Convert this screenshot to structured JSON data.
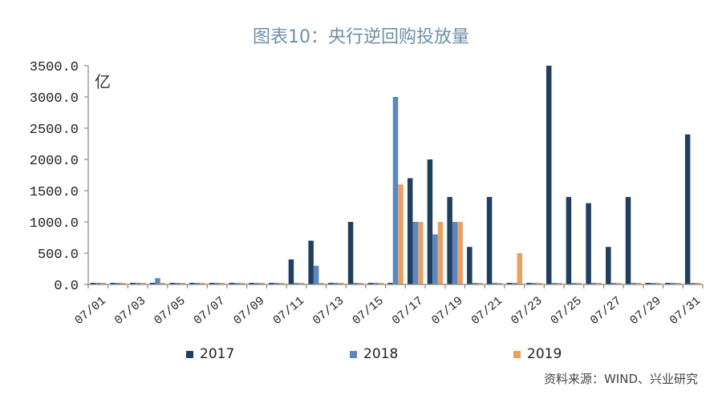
{
  "chart_data": {
    "type": "bar",
    "title": "图表10：央行逆回购投放量",
    "ylabel": "亿",
    "ylim": [
      0,
      3500
    ],
    "yticks": [
      "0.0",
      "500.0",
      "1000.0",
      "1500.0",
      "2000.0",
      "2500.0",
      "3000.0",
      "3500.0"
    ],
    "categories": [
      "07/01",
      "07/02",
      "07/03",
      "07/04",
      "07/05",
      "07/06",
      "07/07",
      "07/08",
      "07/09",
      "07/10",
      "07/11",
      "07/12",
      "07/13",
      "07/14",
      "07/15",
      "07/16",
      "07/17",
      "07/18",
      "07/19",
      "07/20",
      "07/21",
      "07/22",
      "07/23",
      "07/24",
      "07/25",
      "07/26",
      "07/27",
      "07/28",
      "07/29",
      "07/30",
      "07/31"
    ],
    "xtick_labels": [
      "07/01",
      "07/03",
      "07/05",
      "07/07",
      "07/09",
      "07/11",
      "07/13",
      "07/15",
      "07/17",
      "07/19",
      "07/21",
      "07/23",
      "07/25",
      "07/27",
      "07/29",
      "07/31"
    ],
    "series": [
      {
        "name": "2017",
        "color": "#1f3f60",
        "values": [
          0,
          0,
          0,
          0,
          0,
          0,
          0,
          0,
          0,
          0,
          400,
          700,
          0,
          1000,
          0,
          0,
          1700,
          2000,
          1400,
          600,
          1400,
          0,
          0,
          3500,
          1400,
          1300,
          600,
          1400,
          0,
          0,
          2400
        ]
      },
      {
        "name": "2018",
        "color": "#5b86bf",
        "values": [
          0,
          0,
          0,
          100,
          0,
          0,
          0,
          0,
          0,
          0,
          0,
          300,
          0,
          0,
          0,
          3000,
          1000,
          800,
          1000,
          0,
          0,
          0,
          0,
          0,
          0,
          0,
          0,
          0,
          0,
          0,
          0
        ]
      },
      {
        "name": "2019",
        "color": "#e9a061",
        "values": [
          0,
          0,
          0,
          0,
          0,
          0,
          0,
          0,
          0,
          0,
          0,
          0,
          0,
          0,
          0,
          1600,
          1000,
          1000,
          1000,
          0,
          0,
          500,
          0,
          0,
          0,
          0,
          0,
          0,
          0,
          0,
          0
        ]
      }
    ],
    "legend_position": "bottom",
    "grid": false
  },
  "source_note": "资料来源：WIND、兴业研究"
}
